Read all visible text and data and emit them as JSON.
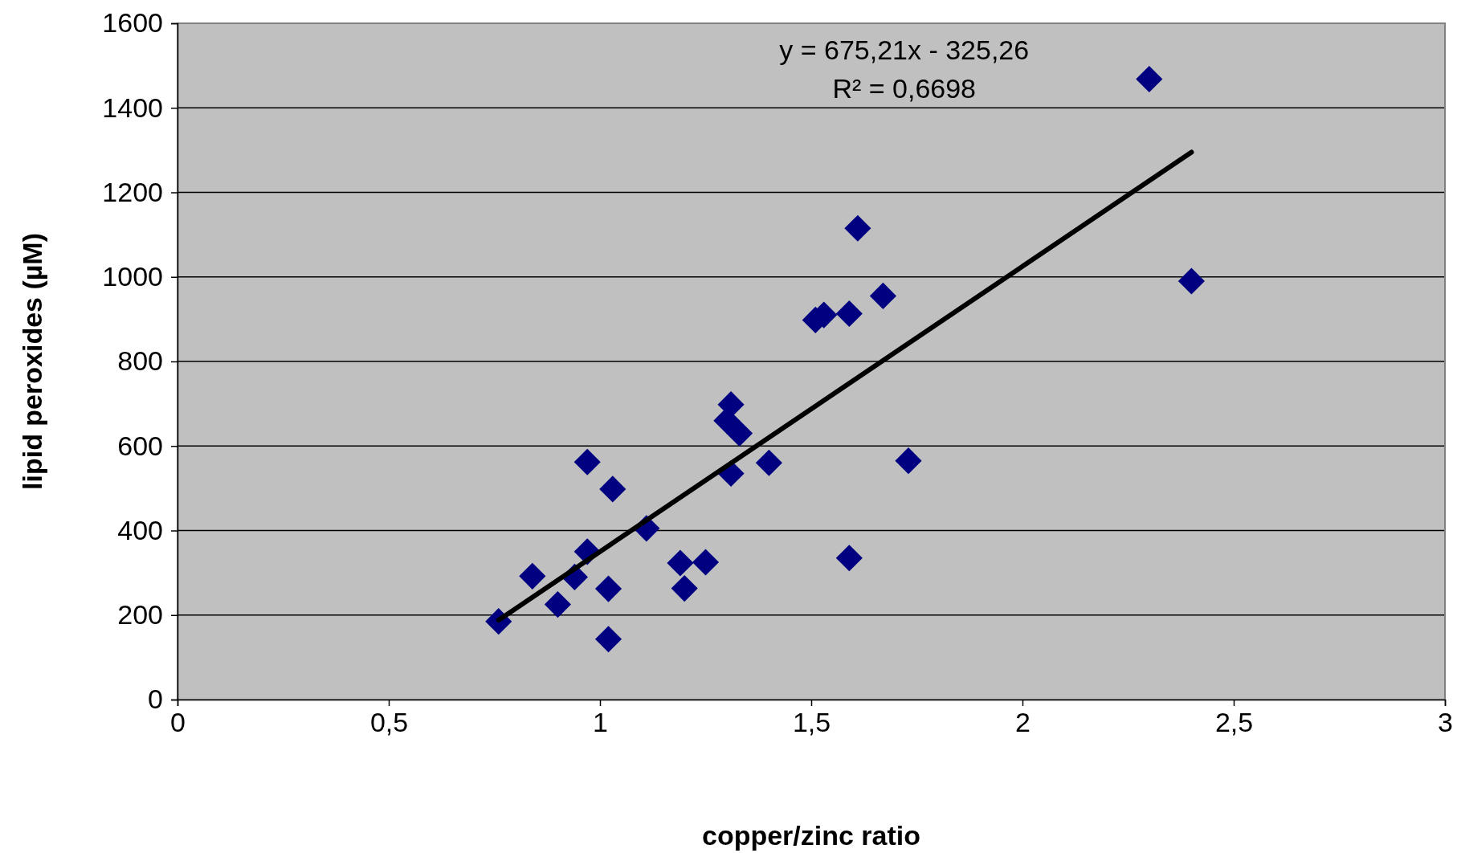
{
  "chart_data": {
    "type": "scatter",
    "xlabel": "copper/zinc ratio",
    "ylabel": "lipid peroxides (µM)",
    "annotations": [
      "y = 675,21x - 325,26",
      "R² = 0,6698"
    ],
    "xlim": [
      0,
      3
    ],
    "xticks": [
      0,
      {
        "value": 0.5,
        "label": "0,5"
      },
      1,
      {
        "value": 1.5,
        "label": "1,5"
      },
      2,
      {
        "value": 2.5,
        "label": "2,5"
      },
      3
    ],
    "ylim": [
      0,
      1600
    ],
    "yticks": [
      0,
      200,
      400,
      600,
      800,
      1000,
      1200,
      1400,
      1600
    ],
    "grid": "y",
    "series": [
      {
        "color": "#000080",
        "marker": "diamond",
        "x": [
          0.76,
          0.84,
          0.9,
          0.94,
          0.97,
          0.97,
          1.02,
          1.02,
          1.03,
          1.11,
          1.19,
          1.2,
          1.25,
          1.3,
          1.31,
          1.31,
          1.33,
          1.4,
          1.51,
          1.53,
          1.59,
          1.59,
          1.61,
          1.67,
          1.73,
          2.3,
          2.4
        ],
        "values": [
          185,
          292,
          225,
          290,
          562,
          350,
          262,
          143,
          498,
          405,
          323,
          263,
          325,
          660,
          698,
          535,
          630,
          560,
          898,
          910,
          913,
          335,
          1115,
          955,
          565,
          1468,
          990
        ]
      },
      {
        "type": "line",
        "color": "#000000",
        "marker": "none",
        "line_style": "solid",
        "x": [
          0.76,
          2.4
        ],
        "values": [
          188,
          1295
        ]
      }
    ]
  }
}
